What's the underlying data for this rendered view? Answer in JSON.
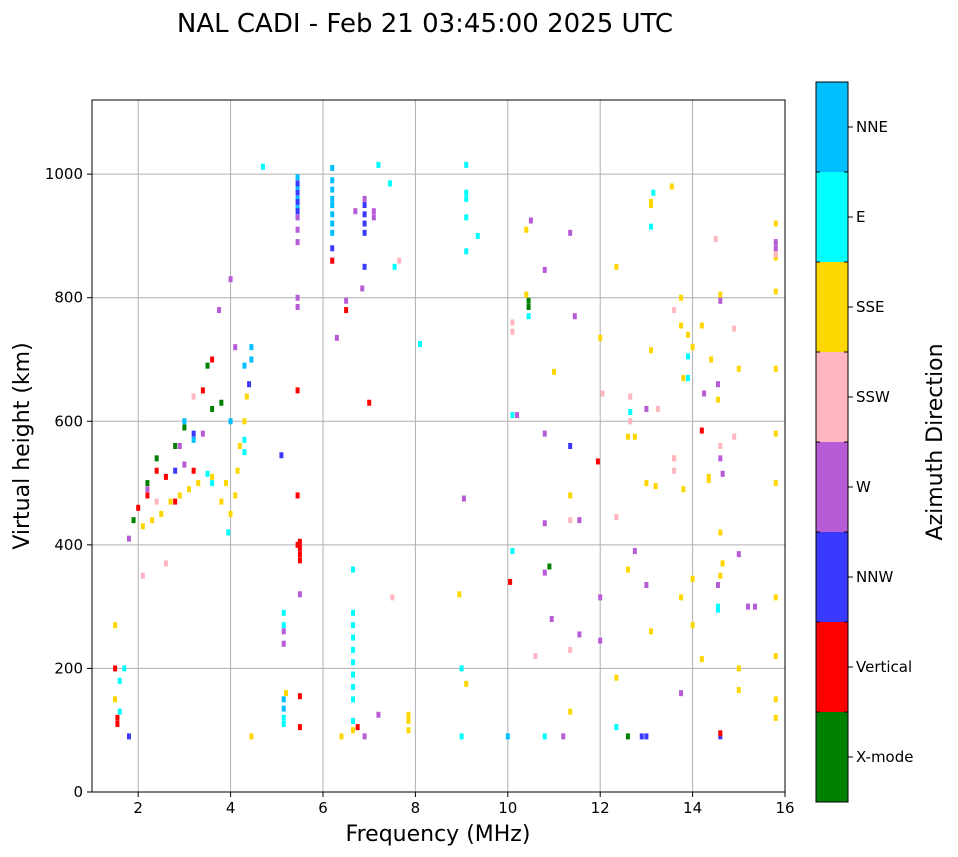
{
  "chart_data": {
    "type": "scatter",
    "title": "NAL CADI - Feb 21 03:45:00 2025 UTC",
    "xlabel": "Frequency (MHz)",
    "ylabel": "Virtual height (km)",
    "xlim": [
      1,
      16
    ],
    "ylim": [
      0,
      1120
    ],
    "xticks": [
      2,
      4,
      6,
      8,
      10,
      12,
      14,
      16
    ],
    "yticks": [
      0,
      200,
      400,
      600,
      800,
      1000
    ],
    "grid": true,
    "colorbar": {
      "title": "Azimuth Direction",
      "categories": [
        {
          "name": "X-mode",
          "color": "#008000"
        },
        {
          "name": "Vertical",
          "color": "#ff0000"
        },
        {
          "name": "NNW",
          "color": "#3a3aff"
        },
        {
          "name": "W",
          "color": "#b75bd6"
        },
        {
          "name": "SSW",
          "color": "#ffb6c1"
        },
        {
          "name": "SSE",
          "color": "#ffd700"
        },
        {
          "name": "E",
          "color": "#00ffff"
        },
        {
          "name": "NNE",
          "color": "#00bfff"
        }
      ]
    },
    "series": [
      {
        "name": "SSE",
        "points": [
          [
            4.0,
            450
          ],
          [
            4.1,
            480
          ],
          [
            4.15,
            520
          ],
          [
            4.2,
            560
          ],
          [
            4.3,
            600
          ],
          [
            4.35,
            640
          ],
          [
            3.9,
            500
          ],
          [
            3.8,
            470
          ],
          [
            3.6,
            510
          ],
          [
            3.3,
            500
          ],
          [
            3.1,
            490
          ],
          [
            2.9,
            480
          ],
          [
            2.7,
            470
          ],
          [
            2.5,
            450
          ],
          [
            2.3,
            440
          ],
          [
            2.1,
            430
          ],
          [
            1.5,
            150
          ],
          [
            1.5,
            270
          ],
          [
            4.45,
            90
          ],
          [
            5.2,
            160
          ],
          [
            6.4,
            90
          ],
          [
            6.65,
            100
          ],
          [
            6.65,
            115
          ],
          [
            7.85,
            100
          ],
          [
            7.85,
            115
          ],
          [
            7.85,
            125
          ],
          [
            8.95,
            320
          ],
          [
            9.1,
            175
          ],
          [
            10.4,
            910
          ],
          [
            10.4,
            805
          ],
          [
            11.0,
            680
          ],
          [
            11.35,
            480
          ],
          [
            11.35,
            130
          ],
          [
            12.0,
            735
          ],
          [
            12.35,
            850
          ],
          [
            12.35,
            185
          ],
          [
            12.6,
            360
          ],
          [
            12.6,
            575
          ],
          [
            12.75,
            575
          ],
          [
            13.1,
            950
          ],
          [
            13.1,
            955
          ],
          [
            13.1,
            715
          ],
          [
            13.1,
            260
          ],
          [
            13.0,
            500
          ],
          [
            13.2,
            495
          ],
          [
            13.55,
            980
          ],
          [
            13.75,
            800
          ],
          [
            13.75,
            755
          ],
          [
            13.75,
            315
          ],
          [
            13.8,
            670
          ],
          [
            13.8,
            490
          ],
          [
            13.9,
            740
          ],
          [
            14.0,
            270
          ],
          [
            14.0,
            345
          ],
          [
            14.2,
            755
          ],
          [
            14.2,
            215
          ],
          [
            14.4,
            700
          ],
          [
            14.55,
            635
          ],
          [
            14.6,
            805
          ],
          [
            14.6,
            420
          ],
          [
            14.65,
            370
          ],
          [
            14.6,
            350
          ],
          [
            15.0,
            685
          ],
          [
            15.0,
            200
          ],
          [
            15.0,
            165
          ],
          [
            15.8,
            920
          ],
          [
            15.8,
            870
          ],
          [
            15.8,
            865
          ],
          [
            15.8,
            810
          ],
          [
            15.8,
            685
          ],
          [
            15.8,
            580
          ],
          [
            15.8,
            500
          ],
          [
            15.8,
            315
          ],
          [
            15.8,
            220
          ],
          [
            15.8,
            150
          ],
          [
            15.8,
            120
          ],
          [
            14.35,
            505
          ],
          [
            14.35,
            510
          ],
          [
            13.6,
            540
          ],
          [
            14.0,
            720
          ]
        ]
      },
      {
        "name": "E",
        "points": [
          [
            3.95,
            420
          ],
          [
            3.6,
            500
          ],
          [
            3.5,
            515
          ],
          [
            4.3,
            550
          ],
          [
            4.3,
            570
          ],
          [
            1.6,
            130
          ],
          [
            1.6,
            180
          ],
          [
            1.7,
            200
          ],
          [
            5.15,
            110
          ],
          [
            5.15,
            120
          ],
          [
            5.15,
            270
          ],
          [
            5.15,
            290
          ],
          [
            6.65,
            360
          ],
          [
            6.65,
            290
          ],
          [
            6.65,
            270
          ],
          [
            6.65,
            250
          ],
          [
            6.65,
            230
          ],
          [
            6.65,
            210
          ],
          [
            6.65,
            190
          ],
          [
            6.65,
            170
          ],
          [
            6.65,
            150
          ],
          [
            6.65,
            115
          ],
          [
            9.0,
            200
          ],
          [
            9.0,
            90
          ],
          [
            9.1,
            1015
          ],
          [
            9.1,
            970
          ],
          [
            9.1,
            960
          ],
          [
            9.1,
            930
          ],
          [
            9.1,
            875
          ],
          [
            9.35,
            900
          ],
          [
            10.1,
            390
          ],
          [
            10.1,
            610
          ],
          [
            10.45,
            770
          ],
          [
            10.8,
            90
          ],
          [
            12.35,
            105
          ],
          [
            12.65,
            615
          ],
          [
            13.1,
            915
          ],
          [
            13.15,
            970
          ],
          [
            13.9,
            705
          ],
          [
            13.9,
            670
          ],
          [
            14.55,
            300
          ],
          [
            14.55,
            295
          ],
          [
            7.2,
            1015
          ],
          [
            7.45,
            985
          ],
          [
            7.55,
            850
          ],
          [
            8.1,
            725
          ],
          [
            4.7,
            1012
          ]
        ]
      },
      {
        "name": "NNE",
        "points": [
          [
            4.45,
            720
          ],
          [
            4.45,
            700
          ],
          [
            4.3,
            690
          ],
          [
            4.0,
            600
          ],
          [
            3.0,
            600
          ],
          [
            3.2,
            570
          ],
          [
            6.2,
            1010
          ],
          [
            6.2,
            990
          ],
          [
            6.2,
            975
          ],
          [
            6.2,
            960
          ],
          [
            6.2,
            950
          ],
          [
            6.2,
            935
          ],
          [
            6.2,
            920
          ],
          [
            6.2,
            905
          ],
          [
            5.45,
            995
          ],
          [
            5.45,
            980
          ],
          [
            5.45,
            960
          ],
          [
            5.45,
            945
          ],
          [
            5.45,
            930
          ],
          [
            5.15,
            150
          ],
          [
            5.15,
            135
          ],
          [
            10.0,
            90
          ]
        ]
      },
      {
        "name": "NNW",
        "points": [
          [
            5.45,
            985
          ],
          [
            5.45,
            970
          ],
          [
            5.45,
            955
          ],
          [
            5.45,
            940
          ],
          [
            6.2,
            880
          ],
          [
            6.9,
            950
          ],
          [
            6.9,
            935
          ],
          [
            6.9,
            920
          ],
          [
            6.9,
            905
          ],
          [
            6.9,
            850
          ],
          [
            5.1,
            545
          ],
          [
            4.4,
            660
          ],
          [
            3.2,
            580
          ],
          [
            2.8,
            520
          ],
          [
            1.8,
            90
          ],
          [
            11.35,
            560
          ],
          [
            12.9,
            90
          ],
          [
            13.0,
            90
          ],
          [
            14.6,
            90
          ]
        ]
      },
      {
        "name": "W",
        "points": [
          [
            5.45,
            930
          ],
          [
            5.45,
            910
          ],
          [
            5.45,
            890
          ],
          [
            5.45,
            800
          ],
          [
            5.45,
            785
          ],
          [
            5.15,
            240
          ],
          [
            5.15,
            260
          ],
          [
            6.2,
            860
          ],
          [
            6.5,
            795
          ],
          [
            6.3,
            735
          ],
          [
            6.7,
            940
          ],
          [
            6.9,
            960
          ],
          [
            7.1,
            940
          ],
          [
            7.1,
            930
          ],
          [
            6.85,
            815
          ],
          [
            7.2,
            125
          ],
          [
            6.9,
            90
          ],
          [
            9.05,
            475
          ],
          [
            10.2,
            610
          ],
          [
            10.5,
            925
          ],
          [
            10.8,
            845
          ],
          [
            10.8,
            580
          ],
          [
            10.8,
            435
          ],
          [
            10.8,
            355
          ],
          [
            10.95,
            280
          ],
          [
            11.2,
            90
          ],
          [
            11.35,
            905
          ],
          [
            11.45,
            770
          ],
          [
            11.55,
            440
          ],
          [
            11.55,
            255
          ],
          [
            12.0,
            315
          ],
          [
            12.0,
            245
          ],
          [
            12.75,
            390
          ],
          [
            13.0,
            335
          ],
          [
            13.0,
            620
          ],
          [
            13.75,
            160
          ],
          [
            14.25,
            645
          ],
          [
            14.55,
            660
          ],
          [
            14.55,
            335
          ],
          [
            14.6,
            795
          ],
          [
            14.6,
            540
          ],
          [
            14.65,
            515
          ],
          [
            15.0,
            385
          ],
          [
            15.2,
            300
          ],
          [
            15.35,
            300
          ],
          [
            15.8,
            890
          ],
          [
            15.8,
            880
          ],
          [
            4.0,
            830
          ],
          [
            4.1,
            720
          ],
          [
            3.75,
            780
          ],
          [
            3.4,
            580
          ],
          [
            3.0,
            530
          ],
          [
            2.9,
            560
          ],
          [
            2.2,
            490
          ],
          [
            1.8,
            410
          ],
          [
            5.5,
            320
          ]
        ]
      },
      {
        "name": "SSW",
        "points": [
          [
            10.1,
            760
          ],
          [
            10.1,
            745
          ],
          [
            10.6,
            220
          ],
          [
            11.35,
            440
          ],
          [
            11.35,
            230
          ],
          [
            12.05,
            645
          ],
          [
            12.35,
            445
          ],
          [
            12.65,
            640
          ],
          [
            12.65,
            600
          ],
          [
            13.25,
            620
          ],
          [
            13.6,
            780
          ],
          [
            13.6,
            540
          ],
          [
            13.6,
            520
          ],
          [
            14.5,
            895
          ],
          [
            14.6,
            560
          ],
          [
            14.9,
            750
          ],
          [
            14.9,
            575
          ],
          [
            15.8,
            870
          ],
          [
            3.2,
            640
          ],
          [
            2.6,
            370
          ],
          [
            2.1,
            350
          ],
          [
            2.4,
            470
          ],
          [
            7.5,
            315
          ],
          [
            7.65,
            860
          ]
        ]
      },
      {
        "name": "Vertical",
        "points": [
          [
            5.5,
            405
          ],
          [
            5.5,
            395
          ],
          [
            5.5,
            385
          ],
          [
            5.5,
            375
          ],
          [
            5.45,
            400
          ],
          [
            5.45,
            480
          ],
          [
            5.45,
            650
          ],
          [
            5.5,
            155
          ],
          [
            5.5,
            105
          ],
          [
            6.2,
            860
          ],
          [
            6.5,
            780
          ],
          [
            6.75,
            105
          ],
          [
            7.0,
            630
          ],
          [
            10.05,
            340
          ],
          [
            11.95,
            535
          ],
          [
            14.2,
            585
          ],
          [
            14.6,
            95
          ],
          [
            1.5,
            200
          ],
          [
            1.55,
            120
          ],
          [
            1.55,
            110
          ],
          [
            2.4,
            520
          ],
          [
            2.6,
            510
          ],
          [
            2.8,
            470
          ],
          [
            3.2,
            520
          ],
          [
            3.4,
            650
          ],
          [
            3.6,
            700
          ],
          [
            2.2,
            480
          ],
          [
            2.0,
            460
          ]
        ]
      },
      {
        "name": "X-mode",
        "points": [
          [
            10.45,
            795
          ],
          [
            10.45,
            785
          ],
          [
            10.9,
            365
          ],
          [
            12.6,
            90
          ],
          [
            3.6,
            620
          ],
          [
            3.5,
            690
          ],
          [
            3.8,
            630
          ],
          [
            3.0,
            590
          ],
          [
            2.8,
            560
          ],
          [
            2.4,
            540
          ],
          [
            2.2,
            500
          ],
          [
            1.9,
            440
          ]
        ]
      }
    ]
  }
}
